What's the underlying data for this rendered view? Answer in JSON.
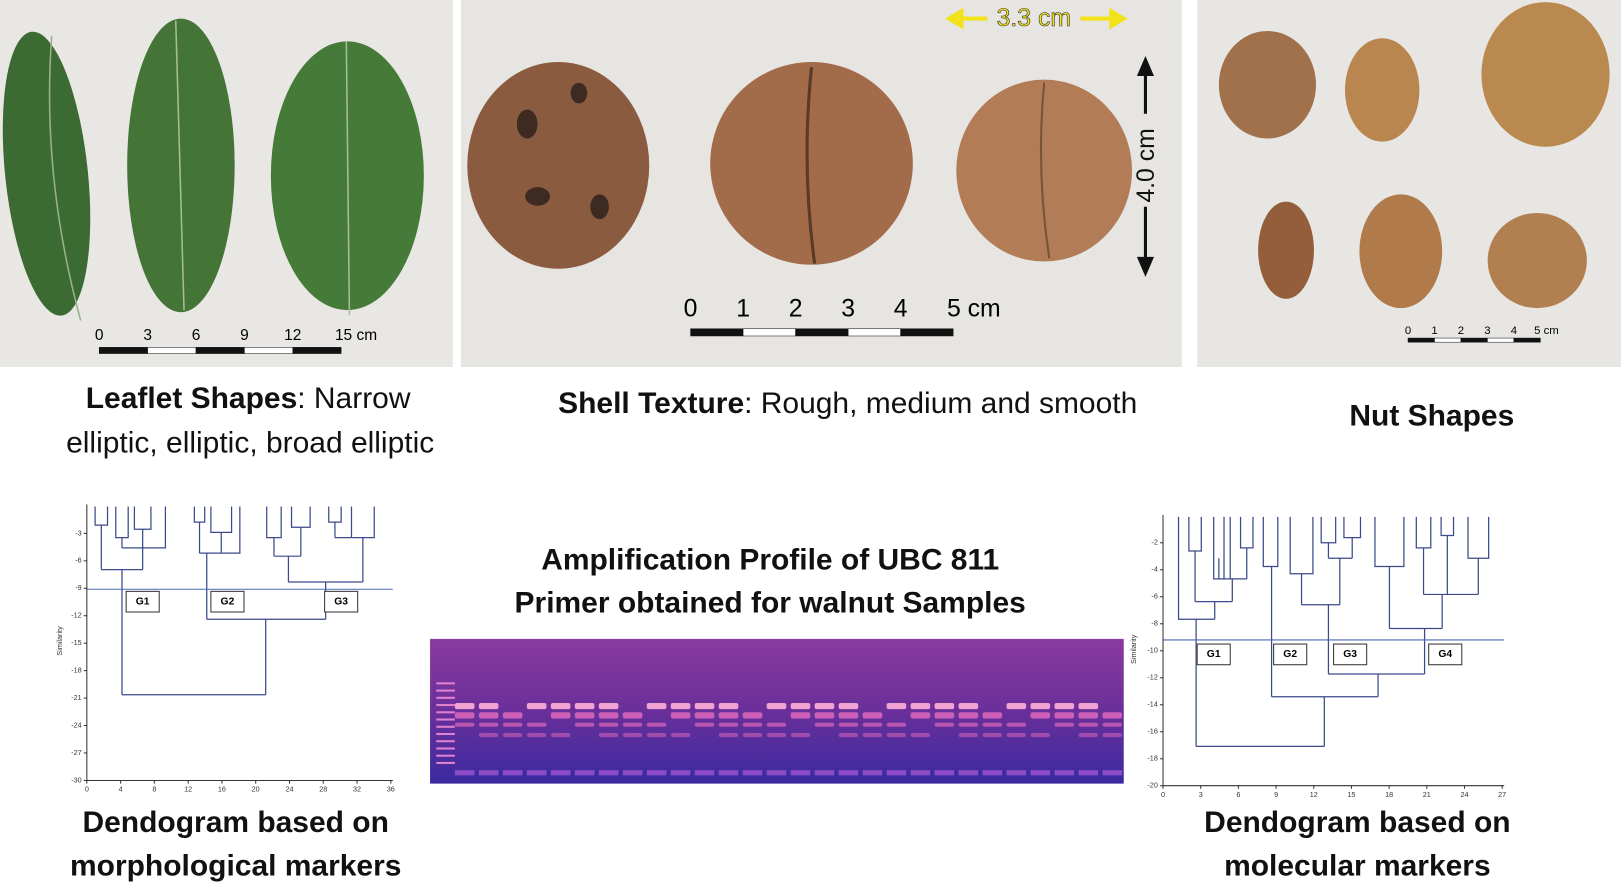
{
  "leaflets": {
    "scale_labels": [
      "0",
      "3",
      "6",
      "9",
      "12",
      "15 cm"
    ],
    "caption_bold": "Leaflet Shapes",
    "caption_rest": ": Narrow",
    "caption_line2": "elliptic, elliptic, broad elliptic"
  },
  "shell": {
    "width_label": "3.3 cm",
    "height_label": "4.0 cm",
    "scale_labels": [
      "0",
      "1",
      "2",
      "3",
      "4",
      "5 cm"
    ],
    "caption_bold": "Shell Texture",
    "caption_rest": ": Rough, medium and smooth"
  },
  "nuts": {
    "scale_labels": [
      "0",
      "1",
      "2",
      "3",
      "4",
      "5 cm"
    ],
    "caption": "Nut Shapes"
  },
  "gel": {
    "title_lines": [
      "Amplification Profile of UBC 811",
      "Primer obtained for walnut Samples"
    ]
  },
  "morph_dendrogram": {
    "caption_lines": [
      "Dendogram based on",
      "morphological markers"
    ],
    "y_label": "Similarity",
    "yticks": [
      -3,
      -6,
      -9,
      -12,
      -15,
      -18,
      -21,
      -24,
      -27,
      -30
    ],
    "xticks": [
      0,
      4,
      8,
      12,
      16,
      20,
      24,
      28,
      32,
      36
    ],
    "groups": [
      "G1",
      "G2",
      "G3"
    ]
  },
  "mol_dendrogram": {
    "caption_lines": [
      "Dendogram based on",
      "molecular markers"
    ],
    "y_label": "Similarity",
    "yticks": [
      -2,
      -4,
      -6,
      -8,
      -10,
      -12,
      -14,
      -16,
      -18,
      -20
    ],
    "xticks": [
      0,
      3,
      6,
      9,
      12,
      15,
      18,
      21,
      24,
      27
    ],
    "groups": [
      "G1",
      "G2",
      "G3",
      "G4"
    ]
  }
}
